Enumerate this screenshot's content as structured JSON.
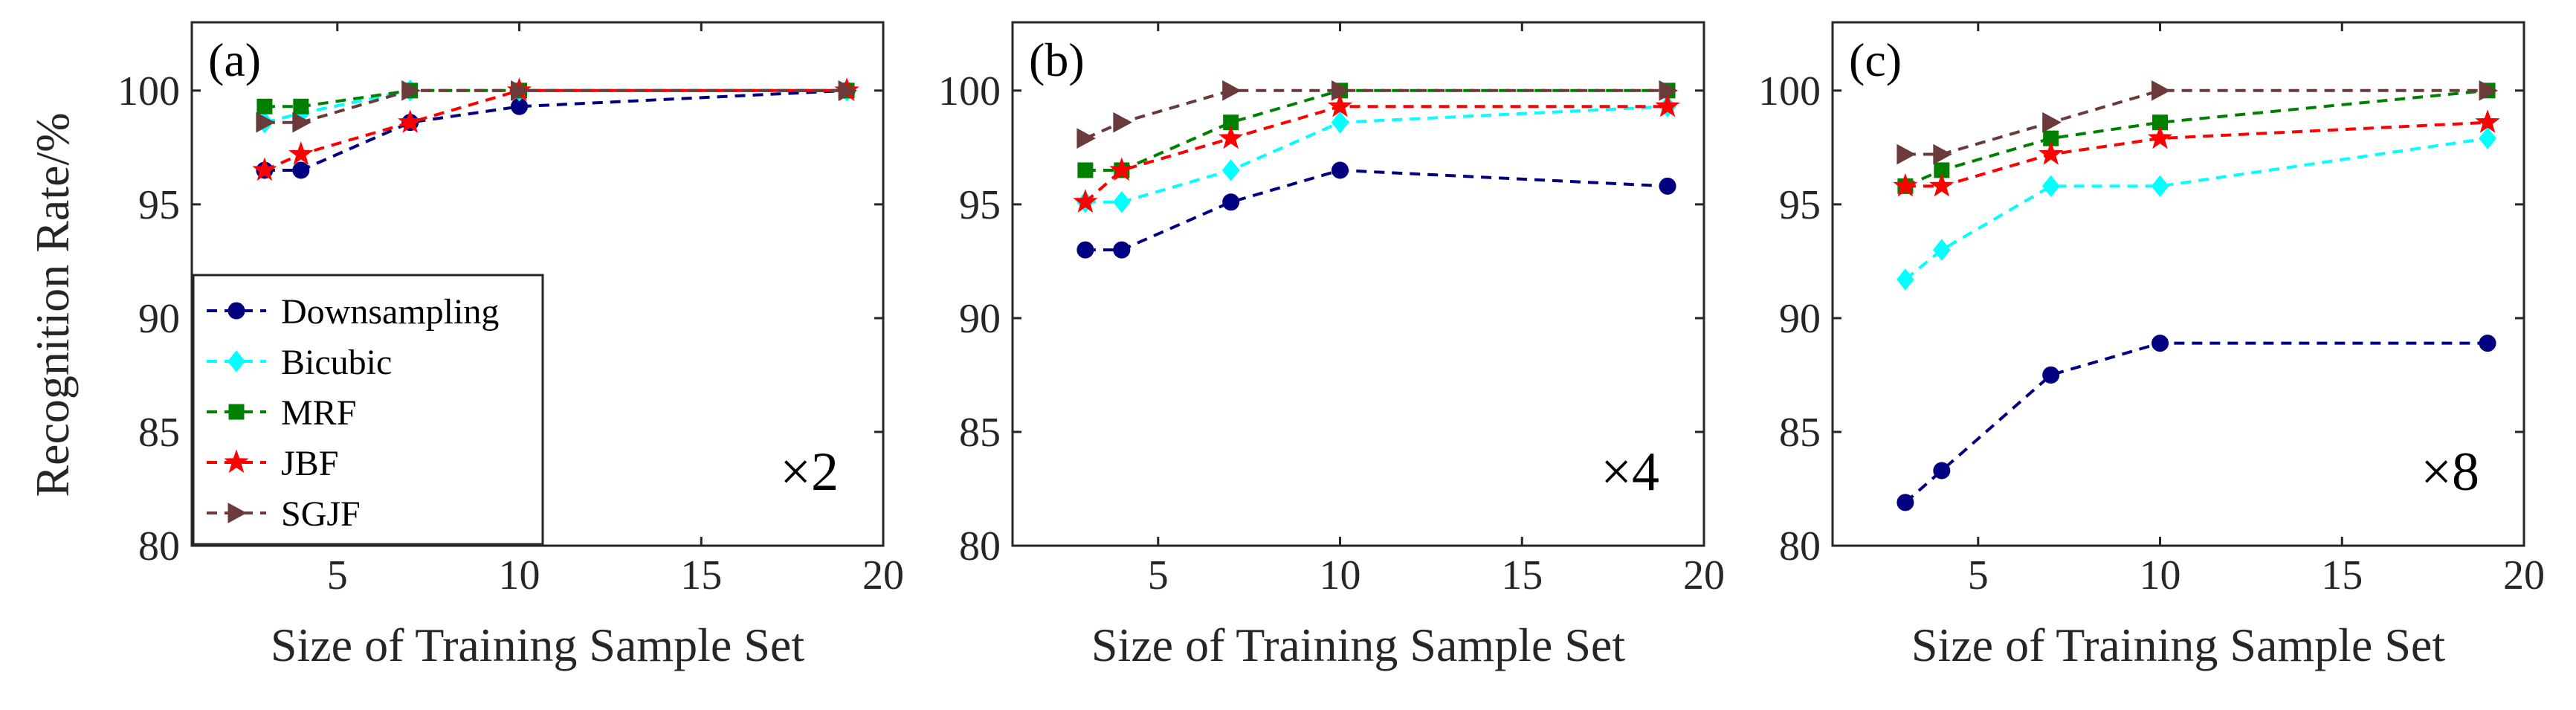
{
  "figure": {
    "ylabel": "Recognition Rate/%",
    "legend": {
      "entries": [
        "Downsampling",
        "Bicubic",
        "MRF",
        "JBF",
        "SGJF"
      ],
      "placement": "panel-a lower-left"
    },
    "series_styles": [
      {
        "name": "Downsampling",
        "color": "#000080",
        "marker": "circle"
      },
      {
        "name": "Bicubic",
        "color": "#00FFFF",
        "marker": "diamond"
      },
      {
        "name": "MRF",
        "color": "#008000",
        "marker": "square"
      },
      {
        "name": "JBF",
        "color": "#FF0000",
        "marker": "star"
      },
      {
        "name": "SGJF",
        "color": "#6B3A3A",
        "marker": "triangle-right"
      }
    ]
  },
  "chart_data": [
    {
      "type": "line",
      "panel_label": "(a)",
      "scale_label": "×2",
      "xlabel": "Size of Training Sample Set",
      "ylabel": "Recognition Rate/%",
      "xlim": [
        1,
        20
      ],
      "ylim": [
        80,
        103
      ],
      "xticks": [
        5,
        10,
        15,
        20
      ],
      "yticks": [
        80,
        85,
        90,
        95,
        100
      ],
      "x": [
        3,
        4,
        7,
        10,
        19
      ],
      "series": [
        {
          "name": "Downsampling",
          "values": [
            96.5,
            96.5,
            98.6,
            99.3,
            100
          ]
        },
        {
          "name": "Bicubic",
          "values": [
            98.6,
            99.0,
            100,
            100,
            100
          ]
        },
        {
          "name": "MRF",
          "values": [
            99.3,
            99.3,
            100,
            100,
            100
          ]
        },
        {
          "name": "JBF",
          "values": [
            96.5,
            97.2,
            98.6,
            100,
            100
          ]
        },
        {
          "name": "SGJF",
          "values": [
            98.6,
            98.6,
            100,
            100,
            100
          ]
        }
      ]
    },
    {
      "type": "line",
      "panel_label": "(b)",
      "scale_label": "×4",
      "xlabel": "Size of Training Sample Set",
      "ylabel": "",
      "xlim": [
        1,
        20
      ],
      "ylim": [
        80,
        103
      ],
      "xticks": [
        5,
        10,
        15,
        20
      ],
      "yticks": [
        80,
        85,
        90,
        95,
        100
      ],
      "x": [
        3,
        4,
        7,
        10,
        19
      ],
      "series": [
        {
          "name": "Downsampling",
          "values": [
            93.0,
            93.0,
            95.1,
            96.5,
            95.8
          ]
        },
        {
          "name": "Bicubic",
          "values": [
            95.1,
            95.1,
            96.5,
            98.6,
            99.3
          ]
        },
        {
          "name": "MRF",
          "values": [
            96.5,
            96.5,
            98.6,
            100,
            100
          ]
        },
        {
          "name": "JBF",
          "values": [
            95.1,
            96.5,
            97.9,
            99.3,
            99.3
          ]
        },
        {
          "name": "SGJF",
          "values": [
            97.9,
            98.6,
            100,
            100,
            100
          ]
        }
      ]
    },
    {
      "type": "line",
      "panel_label": "(c)",
      "scale_label": "×8",
      "xlabel": "Size of Training Sample Set",
      "ylabel": "",
      "xlim": [
        1,
        20
      ],
      "ylim": [
        80,
        103
      ],
      "xticks": [
        5,
        10,
        15,
        20
      ],
      "yticks": [
        80,
        85,
        90,
        95,
        100
      ],
      "x": [
        3,
        4,
        7,
        10,
        19
      ],
      "series": [
        {
          "name": "Downsampling",
          "values": [
            81.9,
            83.3,
            87.5,
            88.9,
            88.9
          ]
        },
        {
          "name": "Bicubic",
          "values": [
            91.7,
            93.0,
            95.8,
            95.8,
            97.9
          ]
        },
        {
          "name": "MRF",
          "values": [
            95.8,
            96.5,
            97.9,
            98.6,
            100
          ]
        },
        {
          "name": "JBF",
          "values": [
            95.8,
            95.8,
            97.2,
            97.9,
            98.6
          ]
        },
        {
          "name": "SGJF",
          "values": [
            97.2,
            97.2,
            98.6,
            100,
            100
          ]
        }
      ]
    }
  ]
}
